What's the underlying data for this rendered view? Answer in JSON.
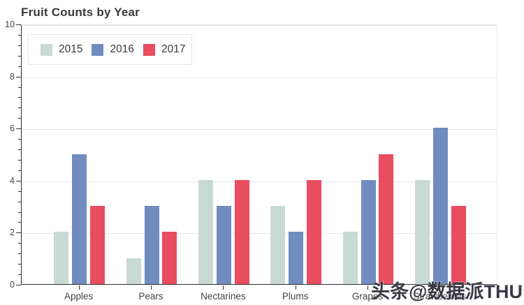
{
  "title": "Fruit Counts by Year",
  "watermark": "头条@数据派THU",
  "chart_data": {
    "type": "bar",
    "title": "Fruit Counts by Year",
    "categories": [
      "Apples",
      "Pears",
      "Nectarines",
      "Plums",
      "Grapes",
      "Strawberries"
    ],
    "series": [
      {
        "name": "2015",
        "color": "#c9d9d3",
        "values": [
          2,
          1,
          4,
          3,
          2,
          4
        ]
      },
      {
        "name": "2016",
        "color": "#718dbf",
        "values": [
          5,
          3,
          3,
          2,
          4,
          6
        ]
      },
      {
        "name": "2017",
        "color": "#e84d60",
        "values": [
          3,
          2,
          4,
          4,
          5,
          3
        ]
      }
    ],
    "xlabel": "",
    "ylabel": "",
    "ylim": [
      0,
      10
    ],
    "y_major_ticks": [
      0,
      2,
      4,
      6,
      8,
      10
    ],
    "y_minor_step": 0.4,
    "grid": true,
    "legend_position": "top-left"
  }
}
